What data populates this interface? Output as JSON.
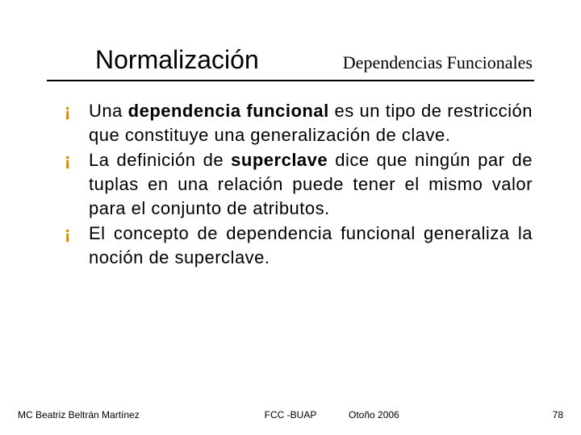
{
  "header": {
    "title": "Normalización",
    "subtitle": "Dependencias Funcionales"
  },
  "bullets": [
    "Una <b>dependencia funcional</b> es un tipo de restricción que constituye una generalización de clave.",
    "La definición de <b>superclave</b> dice que ningún par de tuplas en una relación puede tener el mismo valor para el conjunto de atributos.",
    "El concepto de dependencia funcional generaliza la noción de superclave."
  ],
  "footer": {
    "author": "MC Beatriz Beltrán Martínez",
    "center": "FCC -BUAP",
    "term": "Otoño 2006",
    "pagenum": "78"
  },
  "colors": {
    "bullet_marker": "#d28a00",
    "text": "#000000",
    "background": "#ffffff",
    "rule": "#000000"
  }
}
